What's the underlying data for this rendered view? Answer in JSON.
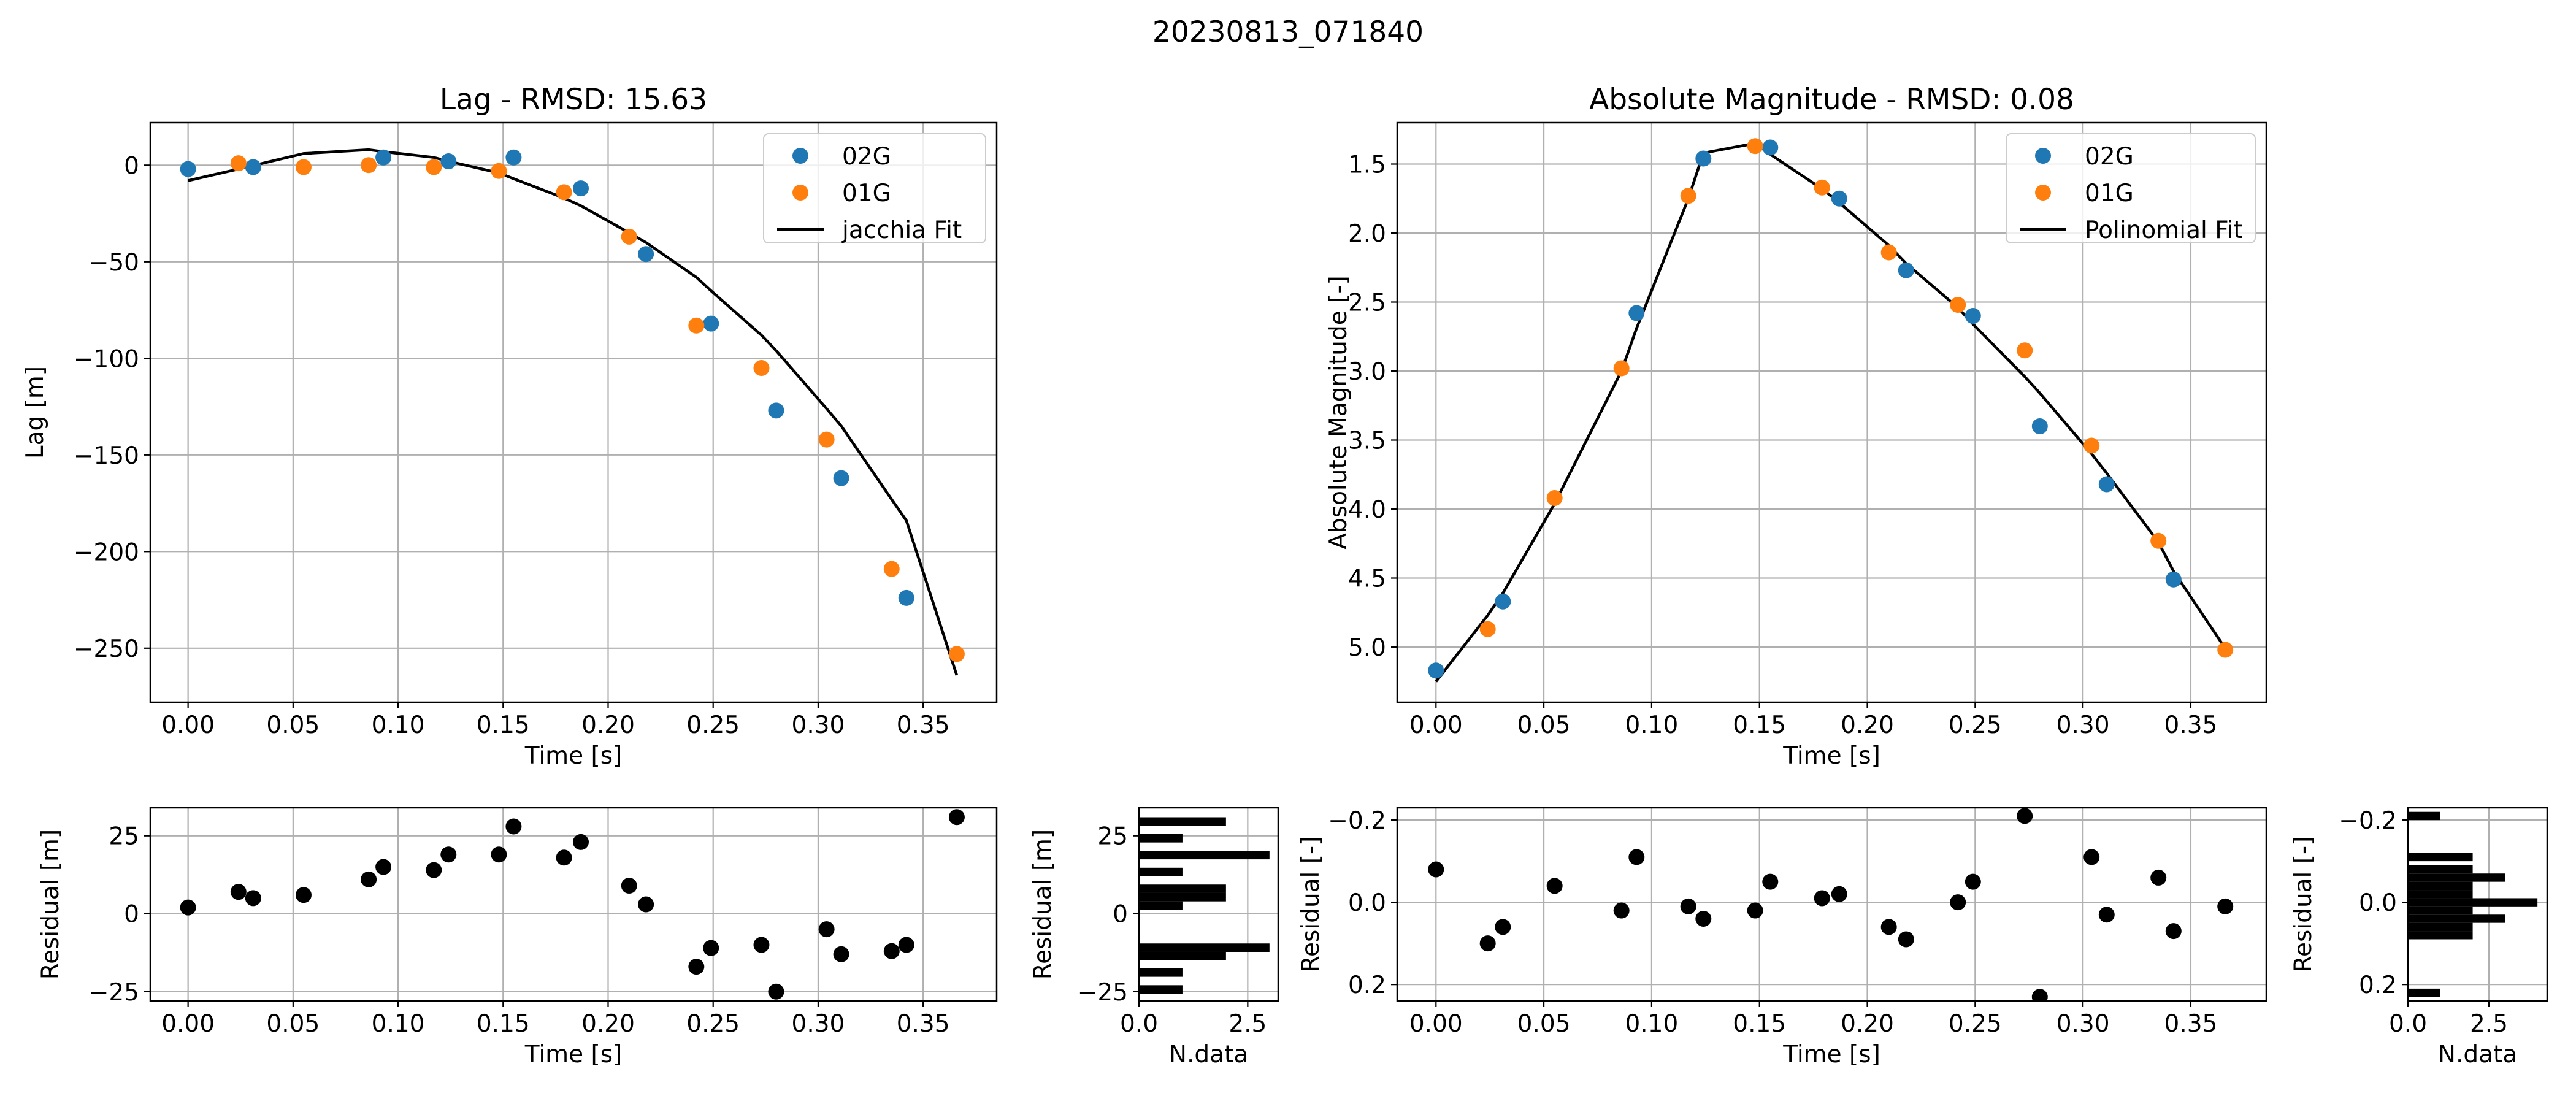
{
  "suptitle": "20230813_071840",
  "colors": {
    "02G": "#1f77b4",
    "01G": "#ff7f0e",
    "fit": "#000000",
    "residual": "#000000",
    "grid": "#b0b0b0"
  },
  "chart_data": [
    {
      "id": "lag",
      "type": "scatter",
      "title": "Lag - RMSD: 15.63",
      "xlabel": "Time [s]",
      "ylabel": "Lag [m]",
      "xlim": [
        -0.018,
        0.385
      ],
      "ylim": [
        -278,
        22
      ],
      "xticks": [
        0.0,
        0.05,
        0.1,
        0.15,
        0.2,
        0.25,
        0.3,
        0.35
      ],
      "xticklabels": [
        "0.00",
        "0.05",
        "0.10",
        "0.15",
        "0.20",
        "0.25",
        "0.30",
        "0.35"
      ],
      "yticks": [
        0,
        -50,
        -100,
        -150,
        -200,
        -250
      ],
      "yticklabels": [
        "0",
        "−50",
        "−100",
        "−150",
        "−200",
        "−250"
      ],
      "grid": true,
      "legend_position": "top-right",
      "series": [
        {
          "name": "02G",
          "kind": "points",
          "color": "#1f77b4",
          "x": [
            0.0,
            0.031,
            0.093,
            0.124,
            0.155,
            0.187,
            0.218,
            0.249,
            0.28,
            0.311,
            0.342
          ],
          "y": [
            -2,
            -1,
            4,
            2,
            4,
            -12,
            -46,
            -82,
            -127,
            -162,
            -224
          ]
        },
        {
          "name": "01G",
          "kind": "points",
          "color": "#ff7f0e",
          "x": [
            0.024,
            0.055,
            0.086,
            0.117,
            0.148,
            0.179,
            0.21,
            0.242,
            0.273,
            0.304,
            0.335,
            0.366
          ],
          "y": [
            1,
            -1,
            0,
            -1,
            -3,
            -14,
            -37,
            -83,
            -105,
            -142,
            -209,
            -253
          ]
        },
        {
          "name": "jacchia Fit",
          "kind": "line",
          "color": "#000000",
          "x": [
            0.0,
            0.024,
            0.055,
            0.086,
            0.093,
            0.117,
            0.124,
            0.148,
            0.155,
            0.179,
            0.187,
            0.21,
            0.218,
            0.242,
            0.249,
            0.273,
            0.28,
            0.304,
            0.311,
            0.335,
            0.342,
            0.366
          ],
          "y": [
            -8,
            -2,
            6,
            8,
            7,
            4,
            2,
            -4,
            -7,
            -17,
            -21,
            -35,
            -40,
            -58,
            -65,
            -88,
            -96,
            -126,
            -135,
            -173,
            -184,
            -264
          ]
        }
      ]
    },
    {
      "id": "lag-residual",
      "type": "scatter",
      "title": "",
      "xlabel": "Time [s]",
      "ylabel": "Residual [m]",
      "xlim": [
        -0.018,
        0.385
      ],
      "ylim": [
        -28,
        34
      ],
      "xticks": [
        0.0,
        0.05,
        0.1,
        0.15,
        0.2,
        0.25,
        0.3,
        0.35
      ],
      "xticklabels": [
        "0.00",
        "0.05",
        "0.10",
        "0.15",
        "0.20",
        "0.25",
        "0.30",
        "0.35"
      ],
      "yticks": [
        25,
        0,
        -25
      ],
      "yticklabels": [
        "25",
        "0",
        "−25"
      ],
      "grid": true,
      "series": [
        {
          "name": "",
          "kind": "points",
          "color": "#000000",
          "x": [
            0.0,
            0.024,
            0.031,
            0.055,
            0.086,
            0.093,
            0.117,
            0.124,
            0.148,
            0.155,
            0.179,
            0.187,
            0.21,
            0.218,
            0.242,
            0.249,
            0.273,
            0.28,
            0.304,
            0.311,
            0.335,
            0.342,
            0.366
          ],
          "y": [
            2,
            7,
            5,
            6,
            11,
            15,
            14,
            19,
            19,
            28,
            18,
            23,
            9,
            3,
            -17,
            -11,
            -10,
            -25,
            -5,
            -13,
            -12,
            -10,
            31
          ]
        }
      ]
    },
    {
      "id": "lag-residual-hist",
      "type": "bar",
      "orientation": "horizontal",
      "title": "",
      "xlabel": "N.data",
      "ylabel": "Residual [m]",
      "xlim": [
        0,
        3.2
      ],
      "ylim": [
        -28,
        34
      ],
      "xticks": [
        0.0,
        2.5
      ],
      "xticklabels": [
        "0.0",
        "2.5"
      ],
      "yticks": [
        25,
        0,
        -25
      ],
      "yticklabels": [
        "25",
        "0",
        "−25"
      ],
      "grid": true,
      "bin_width": 2.7,
      "bars": [
        {
          "y": 29.6,
          "count": 2
        },
        {
          "y": 24.2,
          "count": 1
        },
        {
          "y": 18.8,
          "count": 3
        },
        {
          "y": 13.4,
          "count": 1
        },
        {
          "y": 8.0,
          "count": 2
        },
        {
          "y": 5.3,
          "count": 2
        },
        {
          "y": 2.6,
          "count": 1
        },
        {
          "y": -10.9,
          "count": 3
        },
        {
          "y": -13.6,
          "count": 2
        },
        {
          "y": -18.9,
          "count": 1
        },
        {
          "y": -24.3,
          "count": 1
        }
      ]
    },
    {
      "id": "magnitude",
      "type": "scatter",
      "title": "Absolute Magnitude - RMSD: 0.08",
      "xlabel": "Time [s]",
      "ylabel": "Absolute Magnitude [-]",
      "xlim": [
        -0.018,
        0.385
      ],
      "ylim": [
        5.4,
        1.2
      ],
      "y_inverted": true,
      "xticks": [
        0.0,
        0.05,
        0.1,
        0.15,
        0.2,
        0.25,
        0.3,
        0.35
      ],
      "xticklabels": [
        "0.00",
        "0.05",
        "0.10",
        "0.15",
        "0.20",
        "0.25",
        "0.30",
        "0.35"
      ],
      "yticks": [
        1.5,
        2.0,
        2.5,
        3.0,
        3.5,
        4.0,
        4.5,
        5.0
      ],
      "yticklabels": [
        "1.5",
        "2.0",
        "2.5",
        "3.0",
        "3.5",
        "4.0",
        "4.5",
        "5.0"
      ],
      "grid": true,
      "legend_position": "top-right",
      "series": [
        {
          "name": "02G",
          "kind": "points",
          "color": "#1f77b4",
          "x": [
            0.0,
            0.031,
            0.093,
            0.124,
            0.155,
            0.187,
            0.218,
            0.249,
            0.28,
            0.311,
            0.342
          ],
          "y": [
            5.17,
            4.67,
            2.58,
            1.46,
            1.38,
            1.75,
            2.27,
            2.6,
            3.4,
            3.82,
            4.51
          ]
        },
        {
          "name": "01G",
          "kind": "points",
          "color": "#ff7f0e",
          "x": [
            0.024,
            0.055,
            0.086,
            0.117,
            0.148,
            0.179,
            0.21,
            0.242,
            0.273,
            0.304,
            0.335,
            0.366
          ],
          "y": [
            4.87,
            3.92,
            2.98,
            1.73,
            1.37,
            1.67,
            2.14,
            2.52,
            2.85,
            3.54,
            4.23,
            5.02
          ]
        },
        {
          "name": "Polinomial Fit",
          "kind": "line",
          "color": "#000000",
          "x": [
            0.0,
            0.024,
            0.031,
            0.055,
            0.086,
            0.093,
            0.117,
            0.124,
            0.148,
            0.155,
            0.179,
            0.187,
            0.21,
            0.218,
            0.242,
            0.249,
            0.273,
            0.28,
            0.304,
            0.311,
            0.335,
            0.342,
            0.366
          ],
          "y": [
            5.25,
            4.77,
            4.61,
            3.96,
            3.0,
            2.69,
            1.75,
            1.42,
            1.35,
            1.43,
            1.68,
            1.78,
            2.09,
            2.22,
            2.54,
            2.66,
            3.04,
            3.16,
            3.6,
            3.74,
            4.24,
            4.45,
            5.01
          ]
        }
      ]
    },
    {
      "id": "magnitude-residual",
      "type": "scatter",
      "title": "",
      "xlabel": "Time [s]",
      "ylabel": "Residual [-]",
      "xlim": [
        -0.018,
        0.385
      ],
      "ylim": [
        0.24,
        -0.23
      ],
      "y_inverted": true,
      "xticks": [
        0.0,
        0.05,
        0.1,
        0.15,
        0.2,
        0.25,
        0.3,
        0.35
      ],
      "xticklabels": [
        "0.00",
        "0.05",
        "0.10",
        "0.15",
        "0.20",
        "0.25",
        "0.30",
        "0.35"
      ],
      "yticks": [
        -0.2,
        0.0,
        0.2
      ],
      "yticklabels": [
        "−0.2",
        "0.0",
        "0.2"
      ],
      "grid": true,
      "series": [
        {
          "name": "",
          "kind": "points",
          "color": "#000000",
          "x": [
            0.0,
            0.024,
            0.031,
            0.055,
            0.086,
            0.093,
            0.117,
            0.124,
            0.148,
            0.155,
            0.179,
            0.187,
            0.21,
            0.218,
            0.242,
            0.249,
            0.273,
            0.28,
            0.304,
            0.311,
            0.335,
            0.342,
            0.366
          ],
          "y": [
            -0.08,
            0.1,
            0.06,
            -0.04,
            0.02,
            -0.11,
            0.01,
            0.04,
            0.02,
            -0.05,
            -0.01,
            -0.02,
            0.06,
            0.09,
            0.0,
            -0.05,
            -0.21,
            0.23,
            -0.11,
            0.03,
            -0.06,
            0.07,
            0.01
          ]
        }
      ]
    },
    {
      "id": "magnitude-residual-hist",
      "type": "bar",
      "orientation": "horizontal",
      "title": "",
      "xlabel": "N.data",
      "ylabel": "Residual [-]",
      "xlim": [
        0,
        4.3
      ],
      "ylim": [
        0.24,
        -0.23
      ],
      "y_inverted": true,
      "xticks": [
        0.0,
        2.5
      ],
      "xticklabels": [
        "0.0",
        "2.5"
      ],
      "yticks": [
        -0.2,
        0.0,
        0.2
      ],
      "yticklabels": [
        "−0.2",
        "0.0",
        "0.2"
      ],
      "grid": true,
      "bin_width": 0.02,
      "bars": [
        {
          "y": -0.21,
          "count": 1
        },
        {
          "y": -0.11,
          "count": 2
        },
        {
          "y": -0.08,
          "count": 2
        },
        {
          "y": -0.06,
          "count": 3
        },
        {
          "y": -0.04,
          "count": 2
        },
        {
          "y": -0.02,
          "count": 2
        },
        {
          "y": 0.0,
          "count": 4
        },
        {
          "y": 0.02,
          "count": 2
        },
        {
          "y": 0.04,
          "count": 3
        },
        {
          "y": 0.06,
          "count": 2
        },
        {
          "y": 0.08,
          "count": 2
        },
        {
          "y": 0.22,
          "count": 1
        }
      ]
    }
  ]
}
